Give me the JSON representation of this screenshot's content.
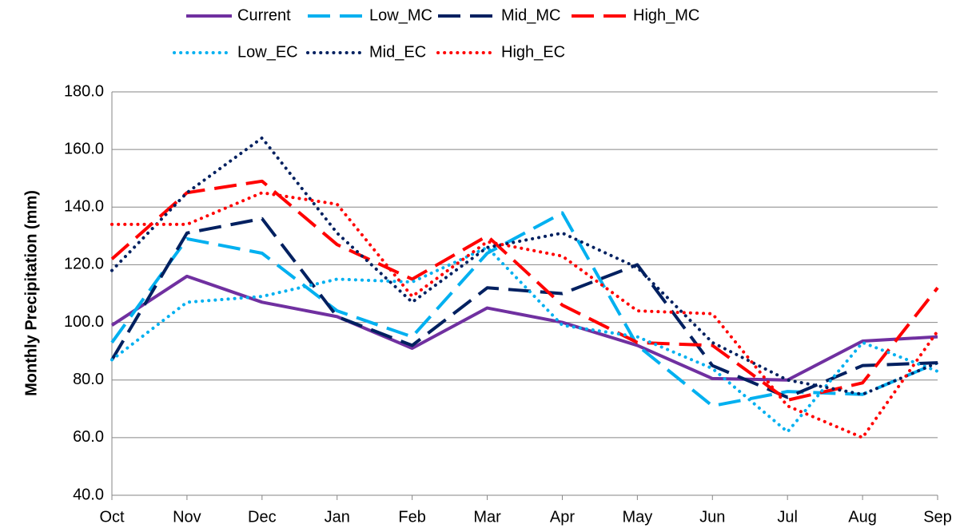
{
  "chart_data": {
    "type": "line",
    "y_axis_label": "Monthly Precipitation (mm)",
    "categories": [
      "Oct",
      "Nov",
      "Dec",
      "Jan",
      "Feb",
      "Mar",
      "Apr",
      "May",
      "Jun",
      "Jul",
      "Aug",
      "Sep"
    ],
    "series": [
      {
        "name": "Current",
        "color": "#7030a0",
        "line_style": "solid",
        "values": [
          99,
          116,
          107,
          102,
          91,
          105,
          100,
          92,
          80.5,
          80,
          93.5,
          95
        ]
      },
      {
        "name": "Low_MC",
        "color": "#00b0f0",
        "line_style": "dashed",
        "values": [
          93,
          129,
          124,
          104,
          95,
          124,
          138,
          92,
          71,
          76,
          75,
          86
        ]
      },
      {
        "name": "Mid_MC",
        "color": "#002060",
        "line_style": "dashed",
        "values": [
          87,
          131,
          136,
          102,
          92,
          112,
          110,
          120,
          85,
          74,
          85,
          86
        ]
      },
      {
        "name": "High_MC",
        "color": "#ff0000",
        "line_style": "dashed",
        "values": [
          122,
          145,
          149,
          127,
          115,
          130,
          106,
          93,
          92,
          73,
          79,
          112
        ]
      },
      {
        "name": "Low_EC",
        "color": "#00b0f0",
        "line_style": "dotted",
        "values": [
          87,
          107,
          109,
          115,
          114,
          126,
          99,
          95,
          84,
          62,
          93,
          83
        ]
      },
      {
        "name": "Mid_EC",
        "color": "#002060",
        "line_style": "dotted",
        "values": [
          118,
          145,
          164,
          131,
          107,
          126,
          131,
          119,
          93,
          80,
          75,
          86
        ]
      },
      {
        "name": "High_EC",
        "color": "#ff0000",
        "line_style": "dotted",
        "values": [
          134,
          134,
          145,
          141,
          109,
          128,
          123,
          104,
          103,
          71,
          60,
          97
        ]
      }
    ],
    "ylim": [
      40,
      180
    ],
    "yticks": [
      {
        "value": 40,
        "label": "40.0"
      },
      {
        "value": 60,
        "label": "60.0"
      },
      {
        "value": 80,
        "label": "80.0"
      },
      {
        "value": 100,
        "label": "100.0"
      },
      {
        "value": 120,
        "label": "120.0"
      },
      {
        "value": 140,
        "label": "140.0"
      },
      {
        "value": 160,
        "label": "160.0"
      },
      {
        "value": 180,
        "label": "180.0"
      }
    ],
    "grid": true
  }
}
